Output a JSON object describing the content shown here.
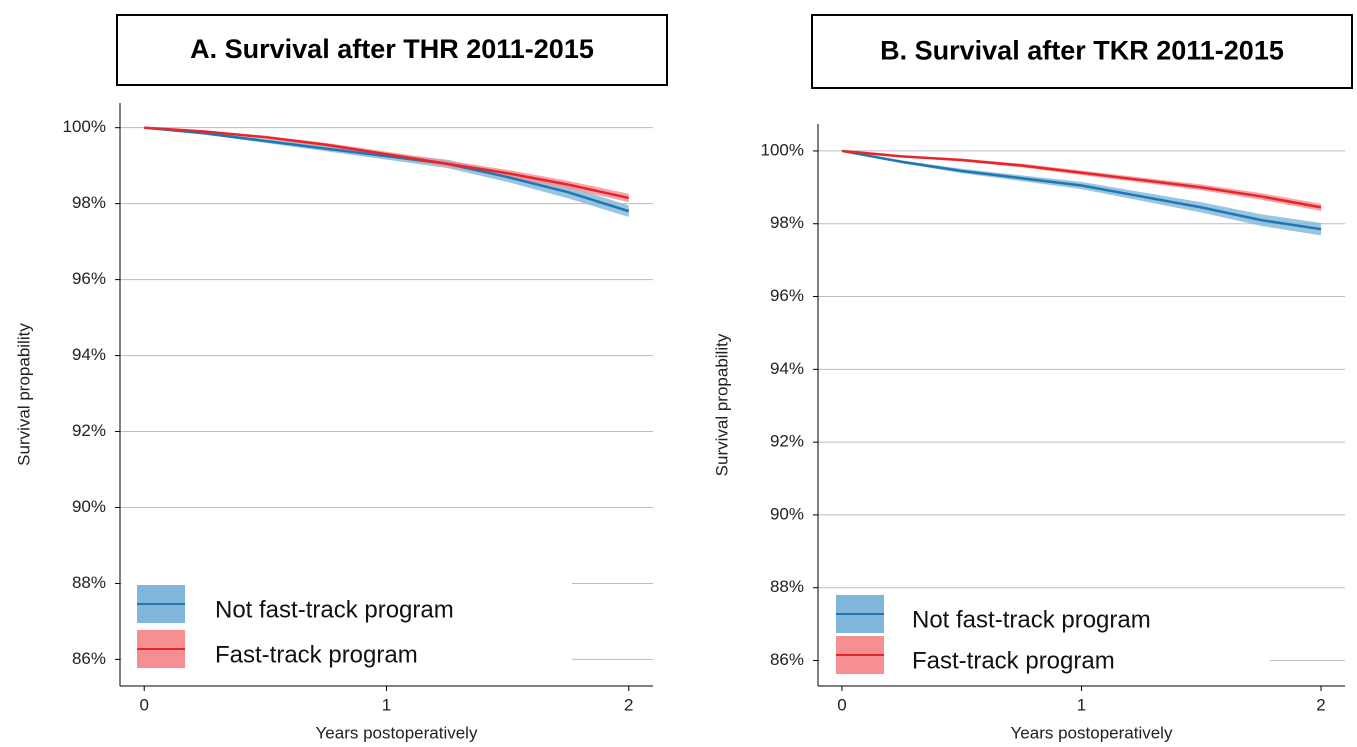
{
  "chart_data": [
    {
      "type": "line",
      "title": "A. Survival after THR 2011-2015",
      "xlabel": "Years postoperatively",
      "ylabel": "Survival propability",
      "x": [
        0,
        0.25,
        0.5,
        0.75,
        1,
        1.25,
        1.5,
        1.75,
        2
      ],
      "xlim": [
        -0.1,
        2.1
      ],
      "xticks": [
        0,
        1,
        2
      ],
      "ylim": [
        85.3,
        100.65
      ],
      "yticks": [
        {
          "value": 86,
          "label": "86%"
        },
        {
          "value": 88,
          "label": "88%"
        },
        {
          "value": 90,
          "label": "90%"
        },
        {
          "value": 92,
          "label": "92%"
        },
        {
          "value": 94,
          "label": "94%"
        },
        {
          "value": 96,
          "label": "96%"
        },
        {
          "value": 98,
          "label": "98%"
        },
        {
          "value": 100,
          "label": "100%"
        }
      ],
      "grid": true,
      "legend": "lower left",
      "series": [
        {
          "name": "Not fast-track program",
          "color": "#1f77b4",
          "band_color": "#7fb6d9",
          "values": [
            100,
            99.85,
            99.65,
            99.45,
            99.25,
            99.05,
            98.7,
            98.3,
            97.8
          ],
          "lower": [
            100,
            99.82,
            99.6,
            99.38,
            99.16,
            98.94,
            98.57,
            98.14,
            97.65
          ],
          "upper": [
            100,
            99.88,
            99.7,
            99.52,
            99.34,
            99.16,
            98.83,
            98.46,
            97.95
          ]
        },
        {
          "name": "Fast-track program",
          "color": "#e8262a",
          "band_color": "#f58f92",
          "values": [
            100,
            99.9,
            99.75,
            99.55,
            99.3,
            99.05,
            98.8,
            98.5,
            98.15
          ],
          "lower": [
            100,
            99.88,
            99.71,
            99.5,
            99.23,
            98.97,
            98.71,
            98.4,
            98.04
          ],
          "upper": [
            100,
            99.92,
            99.79,
            99.6,
            99.37,
            99.13,
            98.89,
            98.6,
            98.26
          ]
        }
      ]
    },
    {
      "type": "line",
      "title": "B. Survival after TKR 2011-2015",
      "xlabel": "Years postoperatively",
      "ylabel": "Survival propability",
      "x": [
        0,
        0.25,
        0.5,
        0.75,
        1,
        1.25,
        1.5,
        1.75,
        2
      ],
      "xlim": [
        -0.1,
        2.1
      ],
      "xticks": [
        0,
        1,
        2
      ],
      "ylim": [
        85.3,
        100.74
      ],
      "yticks": [
        {
          "value": 86,
          "label": "86%"
        },
        {
          "value": 88,
          "label": "88%"
        },
        {
          "value": 90,
          "label": "90%"
        },
        {
          "value": 92,
          "label": "92%"
        },
        {
          "value": 94,
          "label": "94%"
        },
        {
          "value": 96,
          "label": "96%"
        },
        {
          "value": 98,
          "label": "98%"
        },
        {
          "value": 100,
          "label": "100%"
        }
      ],
      "grid": true,
      "legend": "lower left",
      "series": [
        {
          "name": "Not fast-track program",
          "color": "#1f77b4",
          "band_color": "#7fb6d9",
          "values": [
            100,
            99.7,
            99.45,
            99.25,
            99.05,
            98.75,
            98.45,
            98.1,
            97.85
          ],
          "lower": [
            100,
            99.66,
            99.39,
            99.17,
            98.95,
            98.63,
            98.31,
            97.94,
            97.68
          ],
          "upper": [
            100,
            99.74,
            99.51,
            99.33,
            99.15,
            98.87,
            98.59,
            98.26,
            98.02
          ]
        },
        {
          "name": "Fast-track program",
          "color": "#e8262a",
          "band_color": "#f58f92",
          "values": [
            100,
            99.85,
            99.75,
            99.6,
            99.4,
            99.2,
            99.0,
            98.75,
            98.45
          ],
          "lower": [
            100,
            99.83,
            99.71,
            99.55,
            99.34,
            99.13,
            98.92,
            98.66,
            98.35
          ],
          "upper": [
            100,
            99.87,
            99.79,
            99.65,
            99.46,
            99.27,
            99.08,
            98.84,
            98.55
          ]
        }
      ]
    }
  ]
}
